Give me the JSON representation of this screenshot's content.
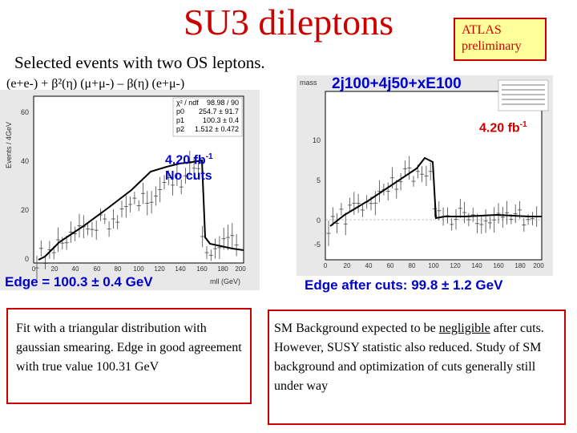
{
  "title": "SU3 dileptons",
  "atlas_box": {
    "line1": "ATLAS",
    "line2": "preliminary"
  },
  "subtitle": "Selected events with two OS leptons.",
  "formula": "(e+e-) + β²(η) (μ+μ-) – β(η) (e+μ-)",
  "left_plot": {
    "y_axis_label": "Events / 4GeV",
    "x_axis_label": "mll (GeV)",
    "stats": {
      "rows": [
        {
          "label": "χ² / ndf",
          "value": "98.98 / 90"
        },
        {
          "label": "p0",
          "value": "254.7 ± 91.7"
        },
        {
          "label": "p1",
          "value": "100.3 ± 0.4"
        },
        {
          "label": "p2",
          "value": "1.512 ± 0.472"
        }
      ]
    },
    "lumi_line1": "4.20 fb",
    "lumi_exp": "-1",
    "lumi_line2": "No cuts",
    "edge_label": "Edge =  100.3 ± 0.4  GeV",
    "y_ticks": [
      "60",
      "40",
      "20",
      "0"
    ],
    "x_ticks": [
      "0",
      "20",
      "40",
      "60",
      "80",
      "100",
      "120",
      "140",
      "160",
      "180",
      "200"
    ]
  },
  "right_plot": {
    "hist_name": "mass",
    "title": "2j100+4j50+xE100",
    "lumi": "4.20 fb",
    "lumi_exp": "-1",
    "edge_label": "Edge after cuts: 99.8 ± 1.2 GeV",
    "y_ticks": [
      "10",
      "5",
      "0",
      "-5"
    ],
    "x_ticks": [
      "0",
      "20",
      "40",
      "60",
      "80",
      "100",
      "120",
      "140",
      "160",
      "180",
      "200"
    ]
  },
  "note_left": "Fit with a triangular distribution with gaussian smearing. Edge in good agreement with true value 100.31 GeV",
  "note_right": {
    "part1": "SM Background expected to be ",
    "underlined": "negligible",
    "part2": " after cuts. However,  SUSY statistic also reduced. Study of SM background and optimization of cuts generally still under way"
  }
}
